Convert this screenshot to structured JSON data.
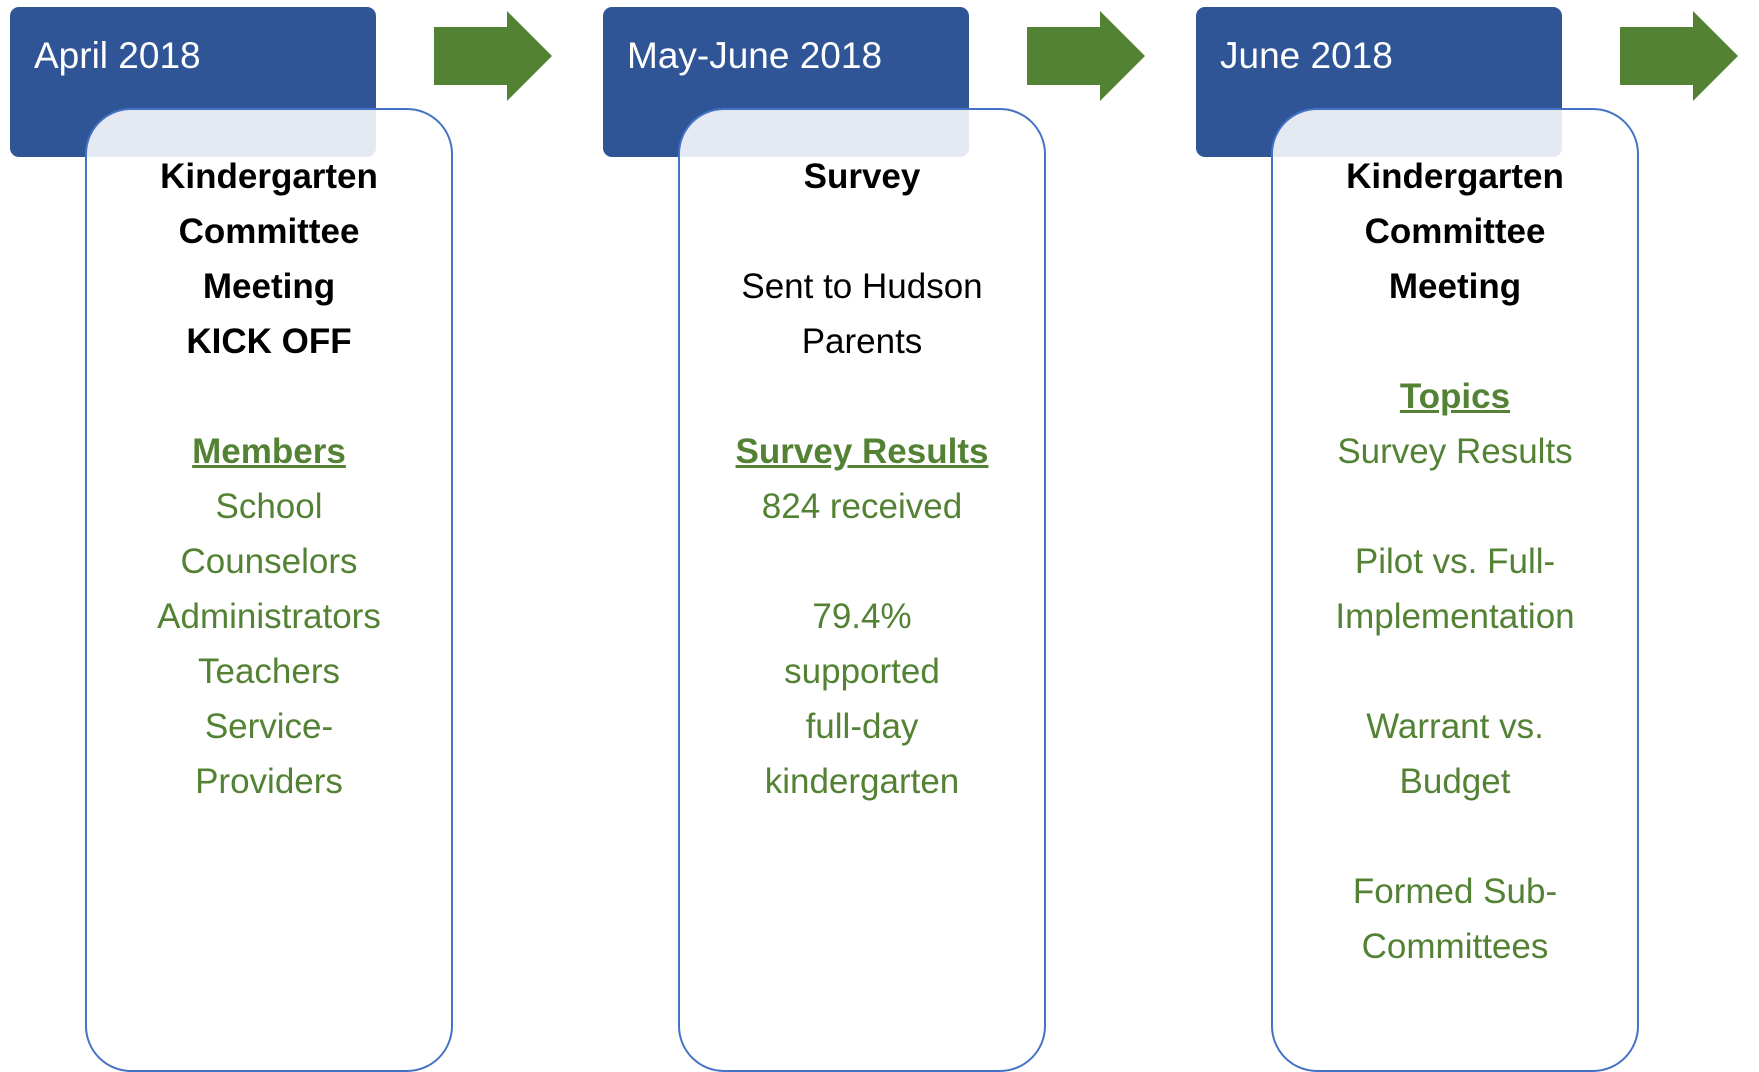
{
  "stages": [
    {
      "date": "April 2018",
      "title": [
        "Kindergarten",
        "Committee",
        "Meeting",
        "KICK OFF"
      ],
      "sections": [
        {
          "heading": "Members",
          "color": "#548235",
          "lines": [
            "School",
            "Counselors",
            "Administrators",
            "Teachers",
            "Service-",
            "Providers"
          ]
        }
      ]
    },
    {
      "date": "May-June 2018",
      "title": [
        "Survey"
      ],
      "sections": [
        {
          "color": "#000000",
          "lines": [
            "Sent to Hudson",
            "Parents"
          ]
        },
        {
          "heading": "Survey Results",
          "color": "#548235",
          "lines": [
            "824 received"
          ]
        },
        {
          "color": "#548235",
          "lines": [
            "79.4%",
            "supported",
            "full-day",
            "kindergarten"
          ]
        }
      ]
    },
    {
      "date": "June 2018",
      "title": [
        "Kindergarten",
        "Committee",
        "Meeting"
      ],
      "sections": [
        {
          "heading": "Topics",
          "color": "#548235",
          "lines": [
            "Survey Results"
          ]
        },
        {
          "color": "#548235",
          "lines": [
            "Pilot vs. Full-",
            "Implementation"
          ]
        },
        {
          "color": "#548235",
          "lines": [
            "Warrant vs.",
            "Budget"
          ]
        },
        {
          "color": "#548235",
          "lines": [
            "Formed Sub-",
            "Committees"
          ]
        }
      ]
    }
  ]
}
